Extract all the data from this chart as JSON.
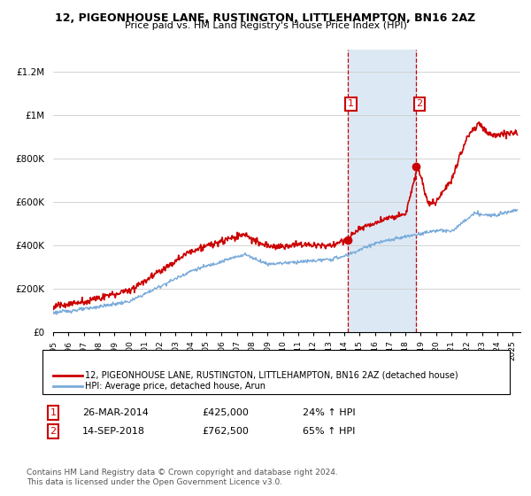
{
  "title": "12, PIGEONHOUSE LANE, RUSTINGTON, LITTLEHAMPTON, BN16 2AZ",
  "subtitle": "Price paid vs. HM Land Registry's House Price Index (HPI)",
  "legend_label_red": "12, PIGEONHOUSE LANE, RUSTINGTON, LITTLEHAMPTON, BN16 2AZ (detached house)",
  "legend_label_blue": "HPI: Average price, detached house, Arun",
  "annotation1_date": "26-MAR-2014",
  "annotation1_price": "£425,000",
  "annotation1_hpi": "24% ↑ HPI",
  "annotation1_year": 2014.23,
  "annotation1_value": 425000,
  "annotation2_date": "14-SEP-2018",
  "annotation2_price": "£762,500",
  "annotation2_hpi": "65% ↑ HPI",
  "annotation2_year": 2018.71,
  "annotation2_value": 762500,
  "copyright": "Contains HM Land Registry data © Crown copyright and database right 2024.\nThis data is licensed under the Open Government Licence v3.0.",
  "red_color": "#cc0000",
  "blue_color": "#7aabda",
  "shade_color": "#dce9f5",
  "vline_color": "#cc0000",
  "grid_color": "#cccccc",
  "ylim_max": 1300000,
  "xlim_start": 1995,
  "xlim_end": 2025.5
}
